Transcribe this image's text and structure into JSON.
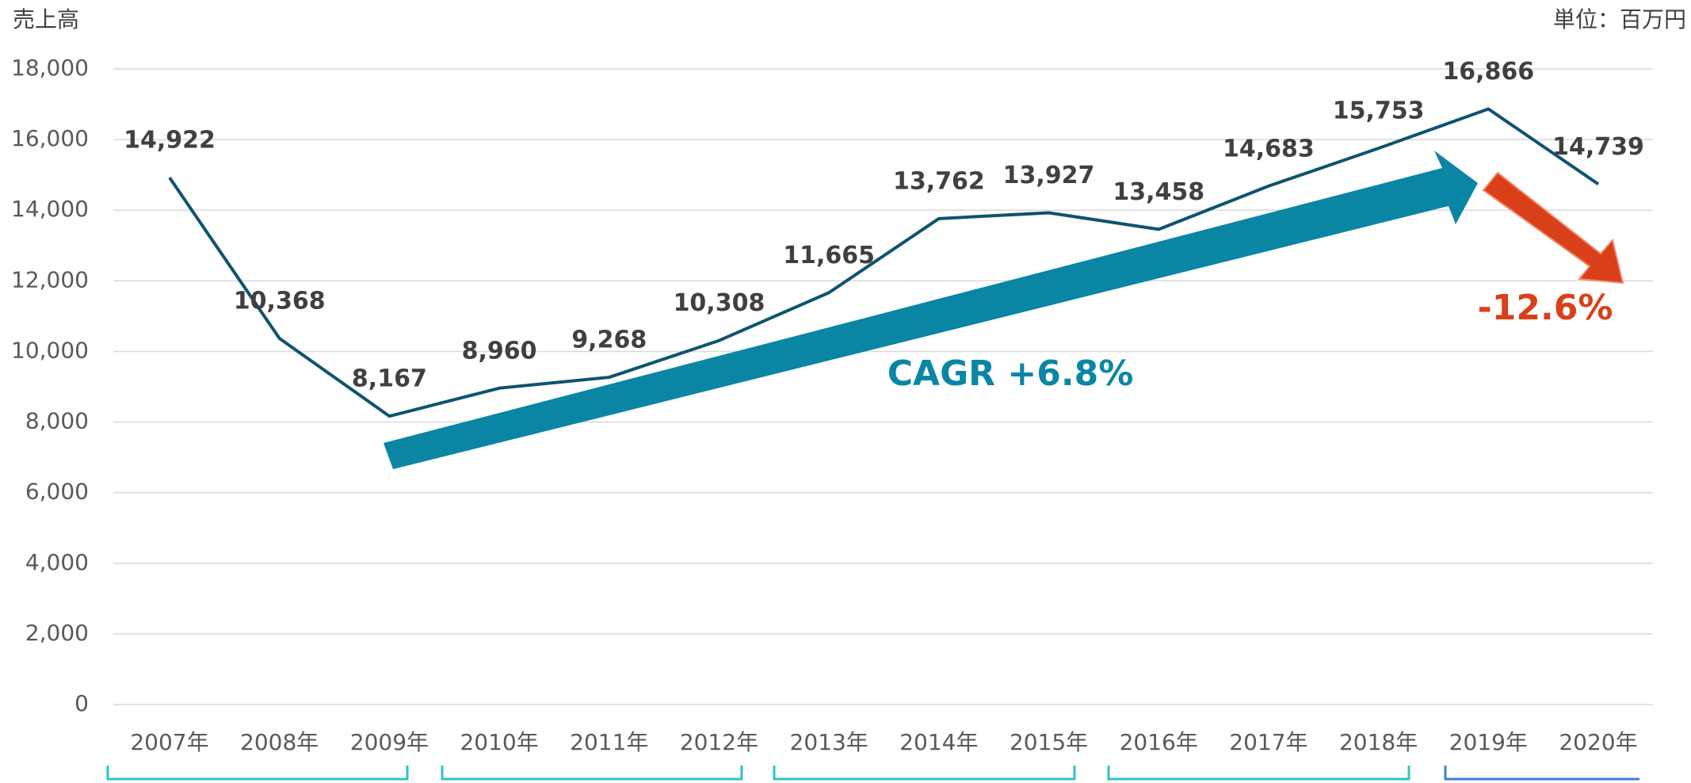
{
  "chart_data": {
    "type": "line",
    "y_unit_label": "売上高",
    "unit_note": "単位：百万円",
    "categories": [
      "2007年",
      "2008年",
      "2009年",
      "2010年",
      "2011年",
      "2012年",
      "2013年",
      "2014年",
      "2015年",
      "2016年",
      "2017年",
      "2018年",
      "2019年",
      "2020年"
    ],
    "series": [
      {
        "name": "売上高",
        "color": "#0d5470",
        "values": [
          14922,
          10368,
          8167,
          8960,
          9268,
          10308,
          11665,
          13762,
          13927,
          13458,
          14683,
          15753,
          16866,
          14739
        ],
        "value_labels": [
          "14,922",
          "10,368",
          "8,167",
          "8,960",
          "9,268",
          "10,308",
          "11,665",
          "13,762",
          "13,927",
          "13,458",
          "14,683",
          "15,753",
          "16,866",
          "14,739"
        ]
      }
    ],
    "ylim": [
      0,
      18000
    ],
    "yticks": [
      0,
      {
        "value": 2000,
        "label": "2,000"
      },
      {
        "value": 4000,
        "label": "4,000"
      },
      {
        "value": 6000,
        "label": "6,000"
      },
      {
        "value": 8000,
        "label": "8,000"
      },
      {
        "value": 10000,
        "label": "10,000"
      },
      {
        "value": 12000,
        "label": "12,000"
      },
      {
        "value": 14000,
        "label": "14,000"
      },
      {
        "value": 16000,
        "label": "16,000"
      },
      {
        "value": 18000,
        "label": "18,000"
      }
    ],
    "grid": true,
    "annotations": [
      "CAGR +6.8%",
      "-12.6%"
    ]
  }
}
